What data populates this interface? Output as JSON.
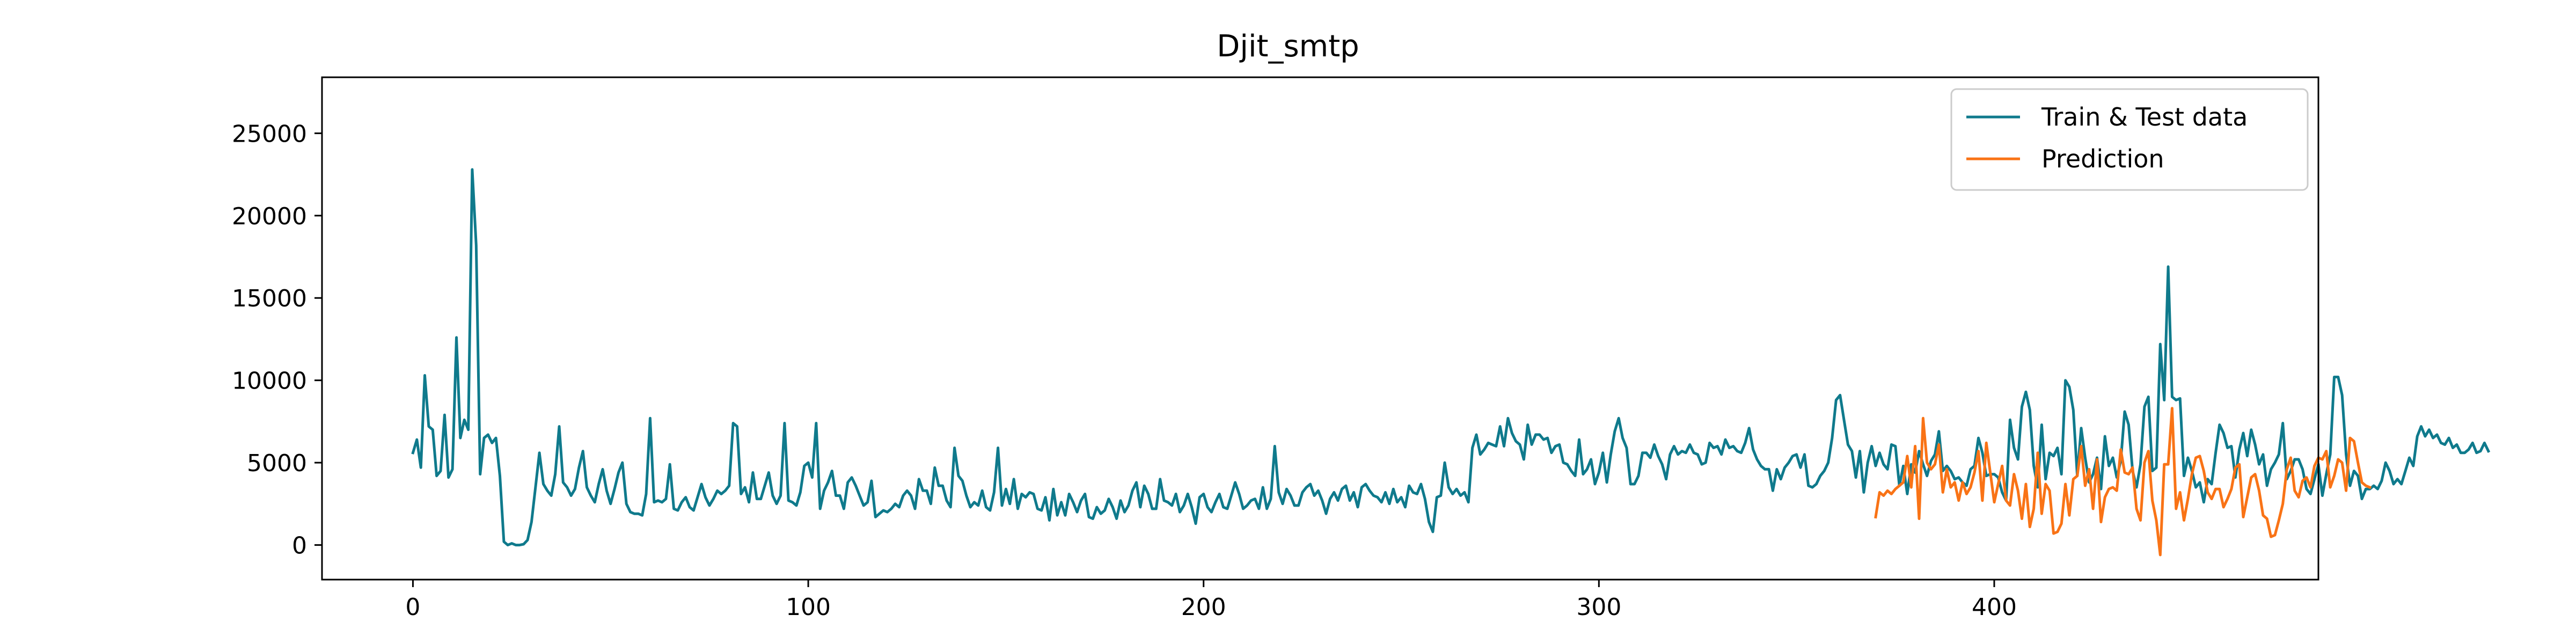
{
  "chart_data": {
    "type": "line",
    "title": "Djit_smtp",
    "xlabel": "",
    "ylabel": "",
    "xlim": [
      -23,
      482
    ],
    "ylim": [
      -2100,
      28400
    ],
    "x_ticks": [
      0,
      100,
      200,
      300,
      400
    ],
    "y_ticks": [
      0,
      5000,
      10000,
      15000,
      20000,
      25000
    ],
    "grid": false,
    "legend_position": "top-right",
    "colors": {
      "series1": "#0f7a8c",
      "series2": "#f97316"
    },
    "series": [
      {
        "name": "Train & Test data",
        "x_start": 0,
        "values": [
          5600,
          6400,
          4700,
          10300,
          7200,
          7000,
          4200,
          4500,
          7900,
          4100,
          4600,
          12600,
          6500,
          7600,
          7000,
          22800,
          18200,
          4300,
          6500,
          6700,
          6200,
          6500,
          4200,
          200,
          0,
          100,
          0,
          0,
          50,
          300,
          1400,
          3500,
          5600,
          3700,
          3300,
          3000,
          4300,
          7200,
          3800,
          3500,
          3000,
          3400,
          4700,
          5700,
          3500,
          3000,
          2600,
          3700,
          4600,
          3300,
          2500,
          3400,
          4400,
          5000,
          2500,
          2000,
          1900,
          1900,
          1800,
          3100,
          7700,
          2600,
          2700,
          2600,
          2800,
          4900,
          2200,
          2100,
          2600,
          2900,
          2300,
          2100,
          2900,
          3700,
          2900,
          2400,
          2800,
          3300,
          3100,
          3300,
          3600,
          7400,
          7200,
          3100,
          3500,
          2600,
          4400,
          2800,
          2800,
          3600,
          4400,
          3000,
          2500,
          3000,
          7400,
          2700,
          2600,
          2400,
          3200,
          4800,
          5000,
          4100,
          7400,
          2200,
          3300,
          3800,
          4500,
          3000,
          3000,
          2200,
          3800,
          4100,
          3600,
          3000,
          2400,
          2600,
          3900,
          1700,
          1900,
          2100,
          2000,
          2200,
          2500,
          2300,
          3000,
          3300,
          3000,
          2200,
          4000,
          3300,
          3300,
          2500,
          4700,
          3600,
          3600,
          2700,
          2300,
          5900,
          4200,
          3900,
          3000,
          2300,
          2600,
          2400,
          3300,
          2300,
          2100,
          3200,
          5900,
          2400,
          3400,
          2500,
          4000,
          2200,
          3100,
          2900,
          3200,
          3100,
          2200,
          2100,
          2900,
          1500,
          3400,
          1800,
          2600,
          1800,
          3100,
          2600,
          2000,
          2700,
          3100,
          1700,
          1600,
          2300,
          1900,
          2100,
          2800,
          2300,
          1600,
          2700,
          2000,
          2400,
          3300,
          3800,
          2300,
          3600,
          3100,
          2200,
          2200,
          4000,
          2700,
          2600,
          2400,
          3100,
          2000,
          2400,
          3100,
          2300,
          1300,
          2900,
          3100,
          2300,
          2000,
          2600,
          3100,
          2300,
          2200,
          3000,
          3800,
          3100,
          2200,
          2400,
          2700,
          2800,
          2200,
          3500,
          2200,
          2800,
          6000,
          3200,
          2500,
          3400,
          3000,
          2400,
          2400,
          3200,
          3500,
          3700,
          3000,
          3300,
          2700,
          1900,
          2800,
          3200,
          2700,
          3400,
          3600,
          2700,
          3200,
          2300,
          3500,
          3700,
          3300,
          3000,
          2900,
          2600,
          3200,
          2500,
          3400,
          2600,
          2900,
          2300,
          3600,
          3200,
          3100,
          3700,
          2800,
          1400,
          800,
          2900,
          3000,
          5000,
          3500,
          3100,
          3400,
          3000,
          3200,
          2600,
          5900,
          6700,
          5500,
          5800,
          6200,
          6100,
          6000,
          7200,
          6000,
          7700,
          6800,
          6300,
          6100,
          5200,
          7300,
          6100,
          6700,
          6700,
          6400,
          6500,
          5600,
          6000,
          6100,
          5000,
          4900,
          4500,
          4200,
          6400,
          4300,
          4600,
          5200,
          3700,
          4400,
          5600,
          3800,
          5500,
          6900,
          7700,
          6500,
          5900,
          3700,
          3700,
          4200,
          5600,
          5600,
          5300,
          6100,
          5400,
          4900,
          4000,
          5500,
          6000,
          5500,
          5700,
          5600,
          6100,
          5600,
          5500,
          4900,
          5000,
          6200,
          5900,
          6000,
          5500,
          6400,
          5900,
          6000,
          5700,
          5600,
          6200,
          7100,
          5800,
          5200,
          4800,
          4600,
          4600,
          3300,
          4600,
          4000,
          4700,
          5000,
          5400,
          5500,
          4700,
          5500,
          3600,
          3500,
          3700,
          4200,
          4500,
          5000,
          6500,
          8800,
          9100,
          7600,
          6100,
          5700,
          4100,
          5700,
          3200,
          5000,
          6000,
          4800,
          5600,
          4900,
          4600,
          6100,
          6000,
          3600,
          4800,
          3100,
          4900,
          4400,
          5700,
          4900,
          4200,
          5100,
          5500,
          6900,
          4500,
          4800,
          4500,
          4000,
          4100,
          3800,
          3600,
          4600,
          4800,
          6500,
          5600,
          4200,
          4300,
          4300,
          4100,
          3200,
          2700,
          7600,
          5900,
          5200,
          8400,
          9300,
          8200,
          4800,
          3500,
          7300,
          4000,
          5600,
          5400,
          5900,
          4300,
          10000,
          9600,
          8200,
          4200,
          7100,
          5300,
          3800,
          4300,
          5300,
          3400,
          6600,
          4800,
          5300,
          4100,
          5100,
          8100,
          7300,
          4500,
          3500,
          4900,
          8400,
          9000,
          4500,
          4700,
          12200,
          8800,
          16900,
          9000,
          8800,
          8900,
          4200,
          5300,
          4500,
          3500,
          3800,
          2600,
          4000,
          3700,
          5600,
          7300,
          6800,
          5900,
          6000,
          4100,
          5800,
          6800,
          5400,
          7000,
          6100,
          4900,
          5500,
          3600,
          4600,
          5000,
          5500,
          7400,
          4000,
          4500,
          5200,
          5200,
          4600,
          3400,
          3100,
          4000,
          4900,
          3000,
          4300,
          5500,
          10200,
          10200,
          9100,
          5500,
          3600,
          4500,
          4200,
          2800,
          3400,
          3400,
          3600,
          3400,
          3900,
          5000,
          4500,
          3700,
          4000,
          3700,
          4500,
          5300,
          4800,
          6600,
          7200,
          6600,
          7000,
          6500,
          6700,
          6200,
          6100,
          6500,
          5900,
          6100,
          5600,
          5600,
          5800,
          6200,
          5600,
          5700,
          6200,
          5700
        ]
      },
      {
        "name": "Prediction",
        "x_start": 370,
        "values": [
          1700,
          3200,
          3000,
          3300,
          3100,
          3400,
          3600,
          3800,
          5400,
          3500,
          6000,
          1600,
          7700,
          5000,
          4600,
          4900,
          6100,
          3200,
          4600,
          3500,
          3800,
          2700,
          3800,
          3100,
          3500,
          4400,
          5700,
          2700,
          6200,
          4400,
          2600,
          3700,
          4800,
          2700,
          2400,
          4300,
          3300,
          1600,
          3700,
          1100,
          2200,
          5600,
          1900,
          3700,
          3300,
          700,
          800,
          1300,
          3700,
          1800,
          4000,
          4200,
          6000,
          3600,
          4600,
          2200,
          5200,
          1400,
          2900,
          3400,
          3500,
          3300,
          5800,
          4400,
          4300,
          4700,
          2200,
          1500,
          5000,
          5700,
          2700,
          1500,
          -600,
          4900,
          4900,
          8300,
          2200,
          3200,
          1500,
          2800,
          4300,
          5300,
          5400,
          4500,
          3200,
          2800,
          3400,
          3400,
          2300,
          2800,
          3400,
          4700,
          4900,
          1700,
          2900,
          4100,
          4300,
          3300,
          1800,
          1600,
          500,
          600,
          1500,
          2500,
          4600,
          5300,
          3300,
          2900,
          3900,
          4100,
          3500,
          4800,
          5300,
          5200,
          5700,
          3500,
          4200,
          5200,
          5000,
          3300,
          6500,
          6300,
          5000,
          3800,
          3600,
          3500
        ]
      }
    ]
  }
}
